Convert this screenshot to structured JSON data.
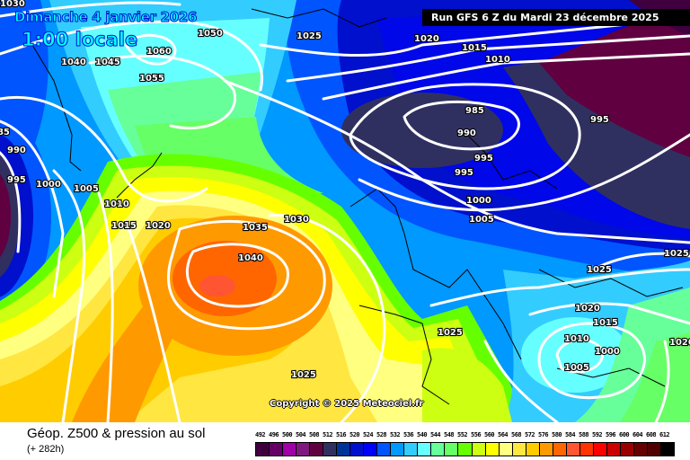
{
  "header": {
    "date": "Dimanche 4 janvier 2026",
    "time": "1:00 locale",
    "run": "Run GFS 6 Z du Mardi 23 décembre 2025"
  },
  "copyright": "Copyright © 2025 Meteociel.fr",
  "footer": {
    "title": "Géop. Z500 & pression au sol",
    "lead": "(+ 282h)"
  },
  "isobar_labels": [
    "1030",
    "1050",
    "1060",
    "1040",
    "1045",
    "1055",
    "1025",
    "1020",
    "1015",
    "1010",
    "985",
    "990",
    "995",
    "995",
    "995",
    "985",
    "990",
    "995",
    "1000",
    "1005",
    "1010",
    "1015",
    "1020",
    "1035",
    "1030",
    "1040",
    "1000",
    "1005",
    "1025",
    "1025",
    "1020",
    "1015",
    "1010",
    "1000",
    "1005",
    "1025",
    "1025",
    "1020"
  ],
  "legend": {
    "unit_values": [
      "492",
      "496",
      "500",
      "504",
      "508",
      "512",
      "516",
      "520",
      "524",
      "528",
      "532",
      "536",
      "540",
      "544",
      "548",
      "552",
      "556",
      "560",
      "564",
      "568",
      "572",
      "576",
      "580",
      "584",
      "588",
      "592",
      "596",
      "600",
      "604",
      "608",
      "612"
    ],
    "colors": [
      "#400040",
      "#660066",
      "#a000a8",
      "#801880",
      "#600040",
      "#303060",
      "#003399",
      "#0010cc",
      "#0000ff",
      "#0055ff",
      "#0099ff",
      "#33ccff",
      "#66ffff",
      "#66ff99",
      "#66ff66",
      "#66ff00",
      "#ccff11",
      "#ffff00",
      "#ffff80",
      "#ffe640",
      "#ffcc00",
      "#ff9900",
      "#ff6600",
      "#ff5533",
      "#ff3300",
      "#ff0000",
      "#cc0000",
      "#990000",
      "#660000",
      "#500000",
      "#000000"
    ]
  }
}
